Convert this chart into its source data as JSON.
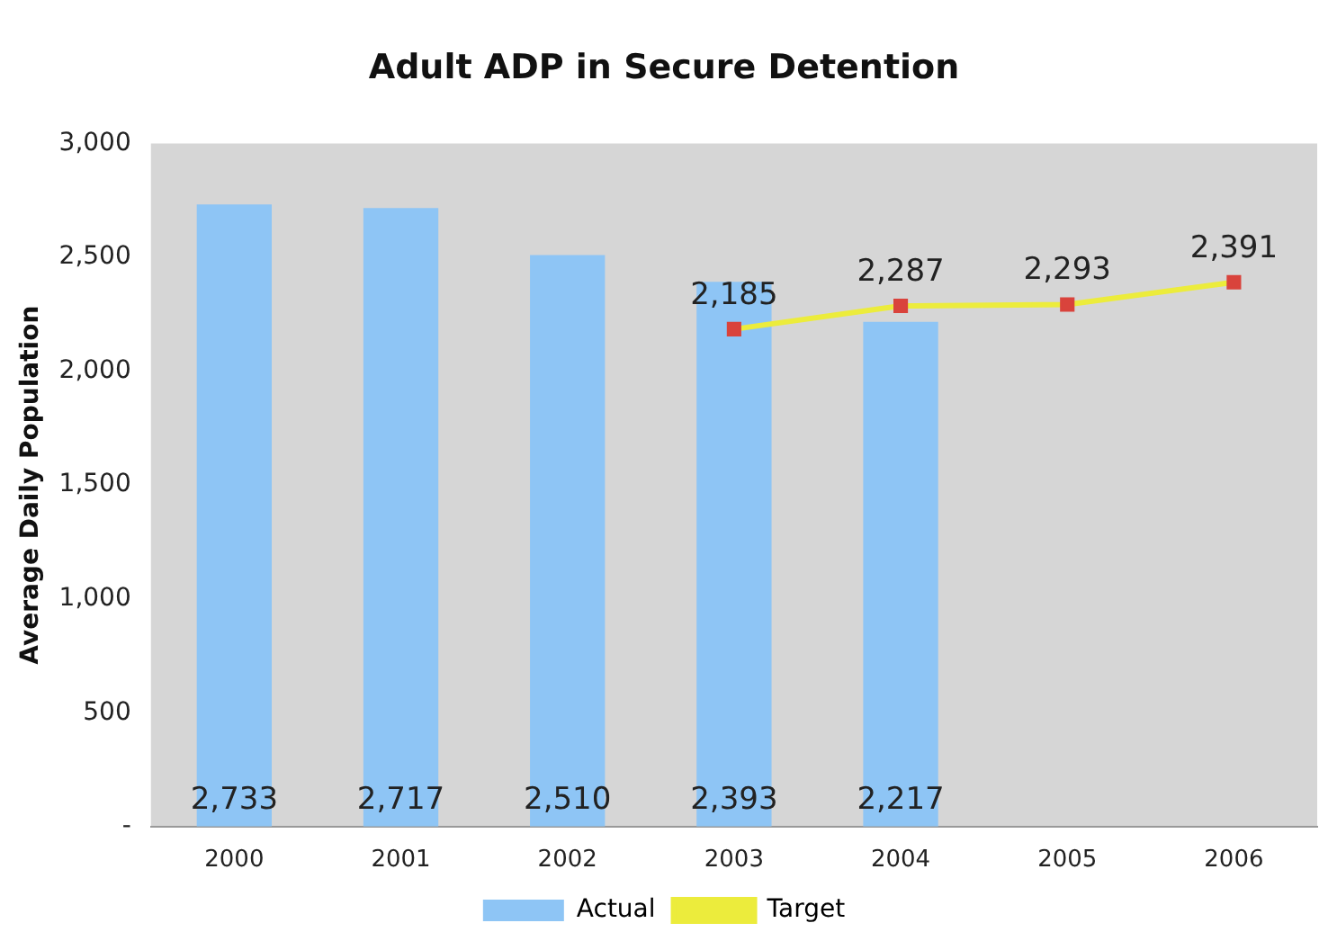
{
  "chart_data": {
    "type": "bar",
    "title": "Adult ADP in Secure Detention",
    "ylabel": "Average Daily Population",
    "categories": [
      "2000",
      "2001",
      "2002",
      "2003",
      "2004",
      "2005",
      "2006"
    ],
    "series": [
      {
        "name": "Actual",
        "color": "#8ec5f5",
        "values": [
          2733,
          2717,
          2510,
          2393,
          2217,
          null,
          null
        ],
        "value_labels": [
          "2,733",
          "2,717",
          "2,510",
          "2,393",
          "2,217",
          null,
          null
        ]
      },
      {
        "name": "Target",
        "type": "line",
        "color": "#ecec3c",
        "values": [
          null,
          null,
          null,
          2185,
          2287,
          2293,
          2391
        ],
        "marker": "square",
        "value_labels": [
          null,
          null,
          null,
          "2,185",
          "2,287",
          "2,293",
          "2,391"
        ]
      }
    ],
    "ylim": [
      0,
      3000
    ],
    "yticks": [
      {
        "value": 0,
        "label": "-"
      },
      {
        "value": 500,
        "label": "500"
      },
      {
        "value": 1000,
        "label": "1,000"
      },
      {
        "value": 1500,
        "label": "1,500"
      },
      {
        "value": 2000,
        "label": "2,000"
      },
      {
        "value": 2500,
        "label": "2,500"
      },
      {
        "value": 3000,
        "label": "3,000"
      }
    ],
    "grid": false,
    "legend": "bottom"
  }
}
